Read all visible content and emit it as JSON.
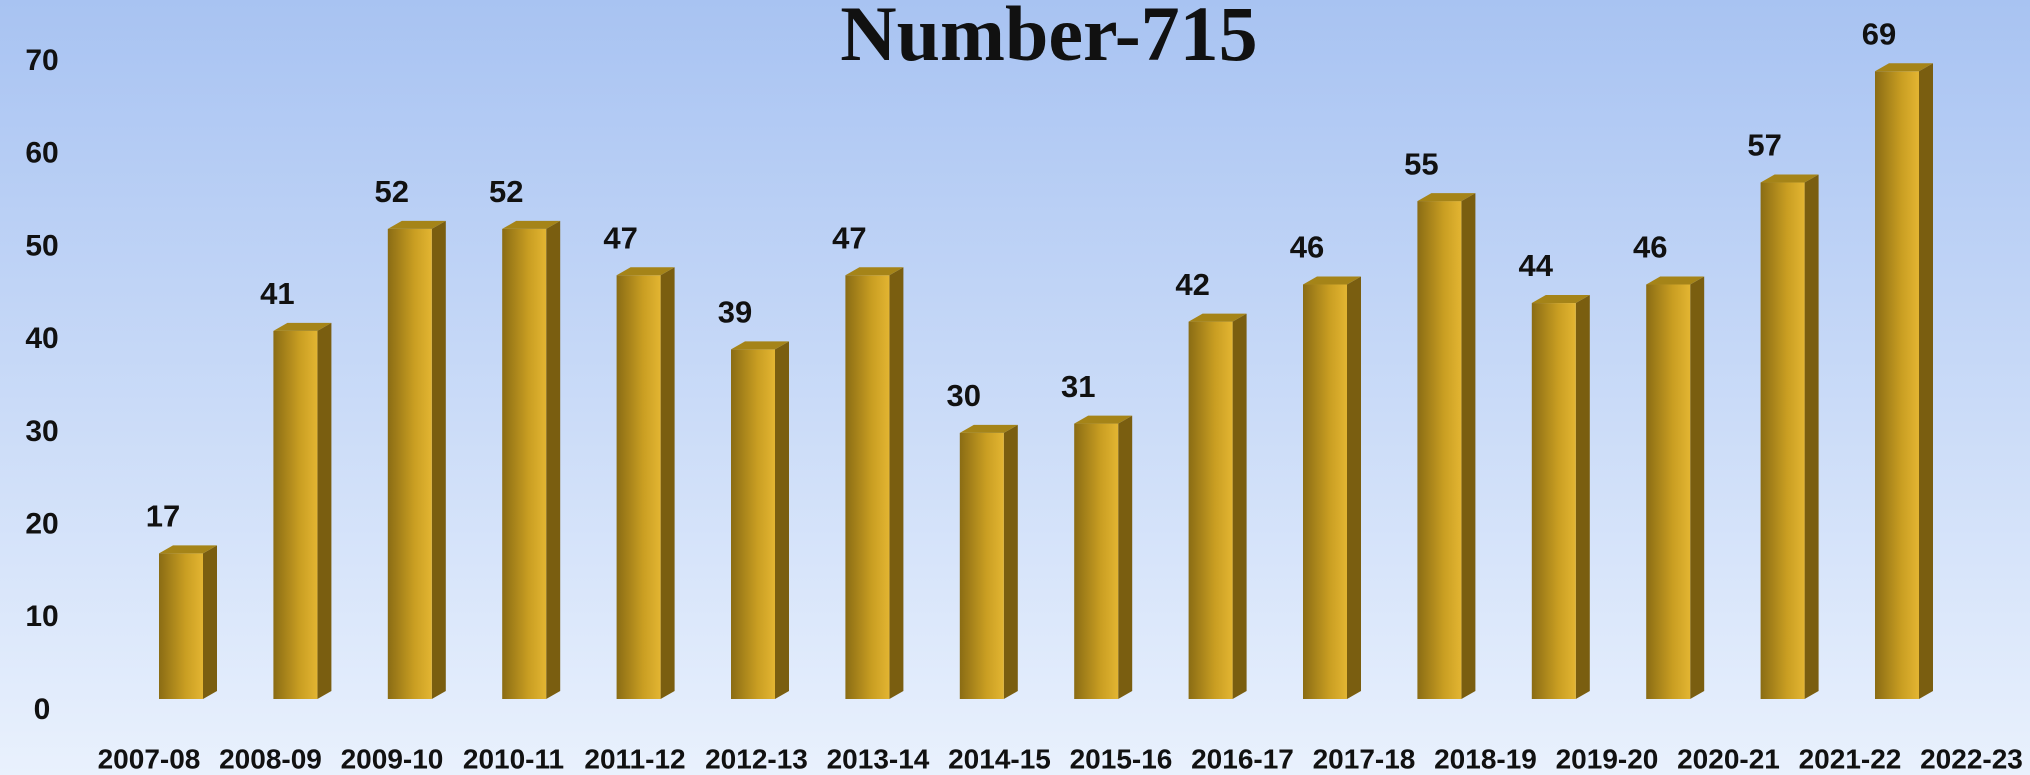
{
  "chart_data": {
    "type": "bar",
    "title": "Number-715",
    "categories": [
      "2007-08",
      "2008-09",
      "2009-10",
      "2010-11",
      "2011-12",
      "2012-13",
      "2013-14",
      "2014-15",
      "2015-16",
      "2016-17",
      "2017-18",
      "2018-19",
      "2019-20",
      "2020-21",
      "2021-22",
      "2022-23"
    ],
    "values": [
      17,
      41,
      52,
      52,
      47,
      39,
      47,
      30,
      31,
      42,
      46,
      55,
      44,
      46,
      57,
      69
    ],
    "color": "#c9a020",
    "ylim": [
      0,
      70
    ],
    "yticks": [
      0,
      10,
      20,
      30,
      40,
      50,
      60,
      70
    ],
    "grid": false
  }
}
